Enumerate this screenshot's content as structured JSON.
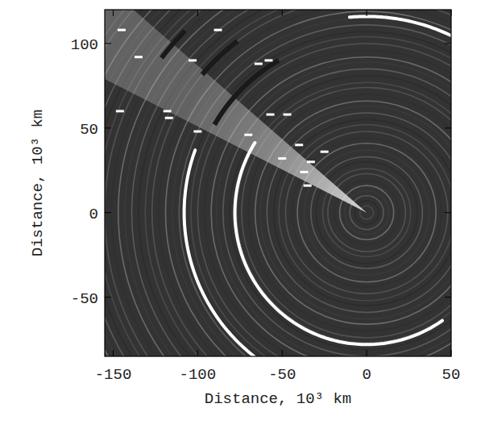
{
  "chart_data": {
    "type": "ring_image",
    "x_label": "Distance, 10³ km",
    "y_label": "Distance, 10³ km",
    "xlim": [
      -155,
      50
    ],
    "ylim": [
      -85,
      120
    ],
    "xticks": [
      -150,
      -100,
      -50,
      0,
      50
    ],
    "yticks": [
      -50,
      0,
      50,
      100
    ],
    "ring_radii": [
      4,
      7,
      10,
      13,
      16,
      19,
      23,
      26,
      30,
      33,
      37,
      41,
      44,
      48,
      52,
      55,
      59,
      63,
      66,
      70,
      74,
      77,
      81,
      85,
      89,
      92,
      96,
      100,
      104,
      107,
      111,
      115,
      119,
      123,
      127,
      131,
      135,
      139,
      143,
      147,
      151,
      155,
      159,
      163,
      167,
      171,
      175,
      179,
      183,
      187
    ],
    "dark_rings": [
      {
        "radius": 104,
        "start_angle": 120,
        "end_angle": 150
      },
      {
        "radius": 127,
        "start_angle": 127,
        "end_angle": 140
      },
      {
        "radius": 152,
        "start_angle": 135,
        "end_angle": 143
      }
    ],
    "arcs": [
      {
        "radius": 116,
        "start_angle": 58,
        "end_angle": 95
      },
      {
        "radius": 78,
        "start_angle": 148,
        "end_angle": 305
      },
      {
        "radius": 108,
        "start_angle": 160,
        "end_angle": 232
      }
    ],
    "wedge": {
      "start_angle": 139,
      "end_angle": 153
    },
    "clumps": {
      "x": [
        -145,
        -135,
        -146,
        -118,
        -117,
        -103,
        -100,
        -88,
        -70,
        -64,
        -58,
        -57,
        -50,
        -47,
        -40,
        -37,
        -35,
        -33,
        -25
      ],
      "y": [
        108,
        92,
        60,
        60,
        56,
        90,
        48,
        108,
        46,
        88,
        90,
        58,
        32,
        58,
        40,
        24,
        16,
        30,
        36
      ]
    }
  }
}
